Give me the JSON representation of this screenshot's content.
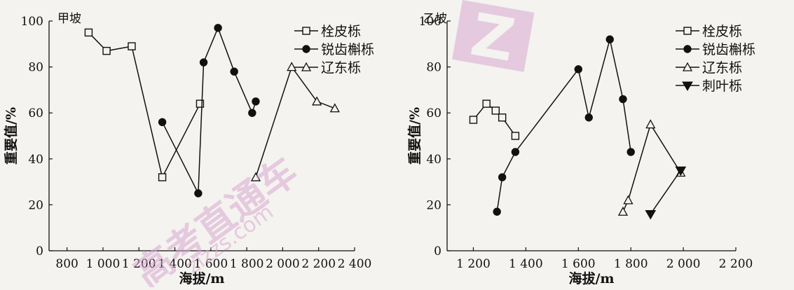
{
  "chart_data": [
    {
      "type": "line",
      "title": "甲坡",
      "xlabel": "海拔/m",
      "ylabel": "重要值/%",
      "xlim": [
        700,
        2400
      ],
      "ylim": [
        0,
        100
      ],
      "xticks": [
        800,
        1000,
        1200,
        1400,
        1600,
        1800,
        2000,
        2200,
        2400
      ],
      "xtick_labels": [
        "800",
        "1 000",
        "1 200",
        "1 400",
        "1 600",
        "1 800",
        "2 000",
        "2 200",
        "2 400"
      ],
      "yticks": [
        0,
        20,
        40,
        60,
        80,
        100
      ],
      "ytick_labels": [
        "0",
        "20",
        "40",
        "60",
        "80",
        "100"
      ],
      "grid": false,
      "legend_position": "top-right",
      "series": [
        {
          "name": "栓皮栎",
          "marker": "square-open",
          "x": [
            920,
            1020,
            1160,
            1330,
            1540
          ],
          "y": [
            95,
            87,
            89,
            32,
            64
          ]
        },
        {
          "name": "锐齿槲栎",
          "marker": "circle-filled",
          "x": [
            1330,
            1530,
            1560,
            1640,
            1730,
            1830,
            1850
          ],
          "y": [
            56,
            25,
            82,
            97,
            78,
            60,
            65
          ]
        },
        {
          "name": "辽东栎",
          "marker": "triangle-open",
          "x": [
            1850,
            2050,
            2190,
            2290
          ],
          "y": [
            32,
            80,
            65,
            62
          ]
        }
      ]
    },
    {
      "type": "line",
      "title": "乙坡",
      "xlabel": "海拔/m",
      "ylabel": "重要值/%",
      "xlim": [
        1100,
        2200
      ],
      "ylim": [
        0,
        100
      ],
      "xticks": [
        1200,
        1400,
        1600,
        1800,
        2000,
        2200
      ],
      "xtick_labels": [
        "1 200",
        "1 400",
        "1 600",
        "1 800",
        "2 000",
        "2 200"
      ],
      "yticks": [
        0,
        20,
        40,
        60,
        80,
        100
      ],
      "ytick_labels": [
        "0",
        "20",
        "40",
        "60",
        "80",
        "100"
      ],
      "grid": false,
      "legend_position": "top-right",
      "series": [
        {
          "name": "栓皮栎",
          "marker": "square-open",
          "x": [
            1200,
            1250,
            1285,
            1310,
            1360
          ],
          "y": [
            57,
            64,
            61,
            58,
            50
          ]
        },
        {
          "name": "锐齿槲栎",
          "marker": "circle-filled",
          "x": [
            1290,
            1310,
            1360,
            1600,
            1640,
            1720,
            1770,
            1800
          ],
          "y": [
            17,
            32,
            43,
            79,
            58,
            92,
            66,
            43
          ]
        },
        {
          "name": "辽东栎",
          "marker": "triangle-open",
          "x": [
            1770,
            1790,
            1875,
            1990
          ],
          "y": [
            17,
            22,
            55,
            34
          ]
        },
        {
          "name": "刺叶栎",
          "marker": "triangle-down-filled",
          "x": [
            1875,
            1990
          ],
          "y": [
            16,
            35
          ]
        }
      ]
    }
  ],
  "watermark": {
    "text": "高考直通车",
    "url_text": "zizzs.com",
    "logo_text": "Z",
    "color": "#d9a6cf"
  }
}
